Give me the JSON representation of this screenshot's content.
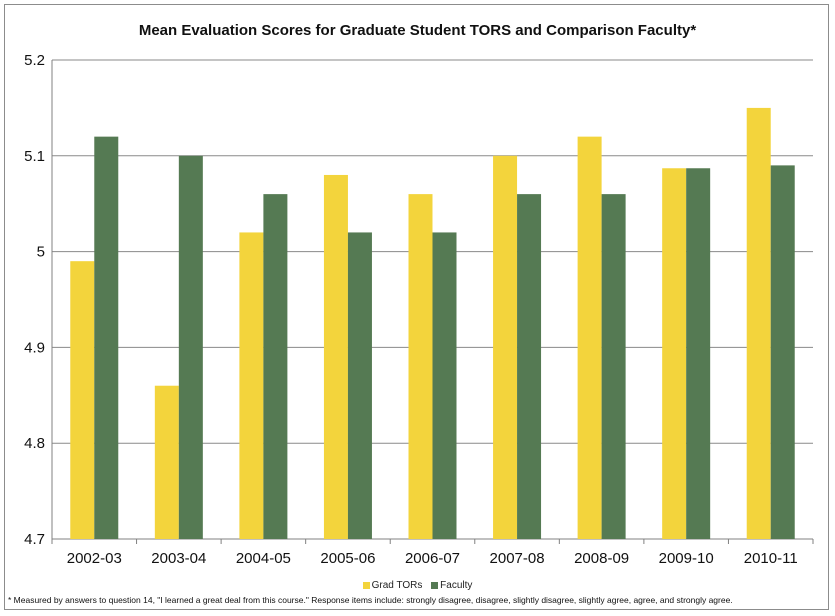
{
  "chart_data": {
    "type": "bar",
    "title": "Mean Evaluation Scores for Graduate Student TORS and Comparison Faculty*",
    "xlabel": "",
    "ylabel": "",
    "categories": [
      "2002-03",
      "2003-04",
      "2004-05",
      "2005-06",
      "2006-07",
      "2007-08",
      "2008-09",
      "2009-10",
      "2010-11"
    ],
    "series": [
      {
        "name": "Grad TORs",
        "color": "#f3d43c",
        "values": [
          4.99,
          4.86,
          5.02,
          5.08,
          5.06,
          5.1,
          5.12,
          5.087,
          5.15
        ]
      },
      {
        "name": "Faculty",
        "color": "#557a53",
        "values": [
          5.12,
          5.1,
          5.06,
          5.02,
          5.02,
          5.06,
          5.06,
          5.087,
          5.09
        ]
      }
    ],
    "ylim": [
      4.7,
      5.2
    ],
    "yticks": [
      "4.7",
      "4.8",
      "4.9",
      "5",
      "5.1",
      "5.2"
    ],
    "grid": true,
    "legend_position": "bottom",
    "footnote": "* Measured by answers to question 14, \"I learned a great deal from this course.\" Response items include: strongly disagree, disagree, slightly disagree, slightly agree, agree, and strongly agree."
  }
}
